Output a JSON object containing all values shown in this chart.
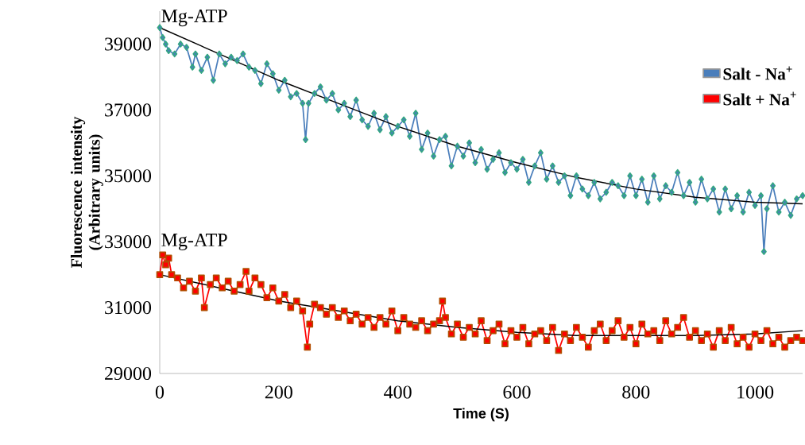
{
  "chart_data": {
    "type": "line",
    "xlabel": "Time (S)",
    "ylabel": "Fluorescence intensity (Arbitrary units)",
    "xlim": [
      0,
      1080
    ],
    "ylim": [
      29000,
      40000
    ],
    "xticks": [
      0,
      200,
      400,
      600,
      800,
      1000
    ],
    "yticks": [
      29000,
      31000,
      33000,
      35000,
      37000,
      39000
    ],
    "grid": false,
    "legend": "top right",
    "annotations": [
      {
        "text": "Mg-ATP",
        "x": 0,
        "y": 39500
      },
      {
        "text": "Mg-ATP",
        "x": 0,
        "y": 32700
      }
    ],
    "series": [
      {
        "name": "Salt - Na$^{+}$",
        "color": "#4a7ebb",
        "marker": "diamond",
        "x": [
          0,
          5,
          10,
          15,
          25,
          35,
          45,
          55,
          60,
          70,
          80,
          90,
          100,
          110,
          120,
          130,
          140,
          150,
          160,
          170,
          180,
          190,
          200,
          210,
          220,
          230,
          240,
          245,
          250,
          260,
          270,
          280,
          290,
          300,
          310,
          320,
          330,
          340,
          350,
          360,
          370,
          380,
          390,
          400,
          410,
          420,
          430,
          440,
          450,
          460,
          470,
          480,
          490,
          500,
          510,
          520,
          530,
          540,
          550,
          560,
          570,
          580,
          590,
          600,
          610,
          620,
          630,
          640,
          650,
          660,
          670,
          680,
          690,
          700,
          710,
          720,
          730,
          740,
          750,
          760,
          770,
          780,
          790,
          800,
          810,
          820,
          830,
          840,
          850,
          860,
          870,
          880,
          890,
          900,
          910,
          920,
          930,
          940,
          950,
          960,
          970,
          980,
          990,
          1000,
          1010,
          1015,
          1020,
          1030,
          1040,
          1050,
          1060,
          1070,
          1080
        ],
        "values": [
          39500,
          39200,
          39000,
          38800,
          38700,
          39000,
          38900,
          38300,
          38700,
          38200,
          38600,
          37900,
          38700,
          38400,
          38600,
          38500,
          38700,
          38300,
          38200,
          37800,
          38400,
          38100,
          37600,
          37900,
          37400,
          37500,
          37200,
          36100,
          37200,
          37500,
          37700,
          37300,
          37500,
          37000,
          37200,
          36800,
          37300,
          36700,
          36500,
          36900,
          36400,
          36800,
          36300,
          36500,
          36700,
          36200,
          36900,
          35800,
          36300,
          35600,
          36100,
          36200,
          35300,
          35900,
          35600,
          36000,
          35400,
          35800,
          35200,
          35500,
          35700,
          35100,
          35400,
          35200,
          35500,
          34800,
          35300,
          35700,
          34900,
          35300,
          34800,
          35000,
          34400,
          35000,
          34600,
          34400,
          34800,
          34300,
          34500,
          34800,
          34700,
          34400,
          35000,
          34400,
          34900,
          34200,
          35000,
          34300,
          34700,
          34500,
          35100,
          34400,
          34800,
          34200,
          34900,
          34300,
          34600,
          33900,
          34600,
          34000,
          34400,
          33900,
          34500,
          34100,
          34400,
          32700,
          34000,
          34700,
          33900,
          34200,
          33800,
          34300,
          34400
        ]
      },
      {
        "name": "Salt + Na$^{+}$",
        "color": "#ff0000",
        "marker": "square",
        "x": [
          0,
          5,
          10,
          15,
          20,
          30,
          40,
          50,
          60,
          70,
          75,
          85,
          95,
          105,
          115,
          125,
          135,
          145,
          150,
          160,
          170,
          180,
          190,
          200,
          210,
          220,
          230,
          240,
          248,
          252,
          260,
          270,
          280,
          290,
          300,
          310,
          320,
          330,
          340,
          350,
          360,
          370,
          380,
          390,
          400,
          410,
          420,
          430,
          440,
          450,
          460,
          470,
          475,
          480,
          490,
          500,
          510,
          520,
          530,
          540,
          550,
          560,
          570,
          580,
          590,
          600,
          610,
          620,
          630,
          640,
          650,
          660,
          670,
          680,
          690,
          700,
          710,
          720,
          730,
          740,
          750,
          760,
          770,
          780,
          790,
          800,
          810,
          820,
          830,
          840,
          850,
          860,
          870,
          880,
          890,
          900,
          910,
          920,
          930,
          940,
          950,
          960,
          970,
          980,
          990,
          1000,
          1010,
          1020,
          1030,
          1040,
          1050,
          1060,
          1070,
          1080
        ],
        "values": [
          32000,
          32600,
          32300,
          32500,
          32000,
          31900,
          31600,
          31800,
          31500,
          31900,
          31000,
          31700,
          31900,
          31600,
          31800,
          31500,
          31700,
          32100,
          31500,
          31900,
          31700,
          31300,
          31600,
          31200,
          31400,
          31000,
          31200,
          30900,
          29800,
          30500,
          31100,
          31000,
          30800,
          31000,
          30700,
          30900,
          30600,
          30800,
          30500,
          30700,
          30400,
          30700,
          30500,
          30900,
          30300,
          30700,
          30500,
          30400,
          30600,
          30300,
          30500,
          30600,
          31200,
          30700,
          30200,
          30500,
          30100,
          30400,
          30200,
          30600,
          30000,
          30300,
          30500,
          29900,
          30300,
          30100,
          30400,
          29900,
          30200,
          30300,
          30000,
          30400,
          29700,
          30200,
          30000,
          30400,
          30100,
          29800,
          30300,
          30500,
          30000,
          30300,
          30600,
          30100,
          30400,
          29900,
          30500,
          30200,
          30300,
          30000,
          30600,
          30200,
          30400,
          30700,
          30100,
          30300,
          30000,
          30200,
          29800,
          30300,
          30000,
          30400,
          29900,
          30100,
          29800,
          30200,
          30000,
          30300,
          29900,
          30100,
          29800,
          30000,
          30100,
          30000
        ]
      },
      {
        "color": "#000000",
        "marker": "none",
        "x": [
          0,
          100,
          200,
          300,
          400,
          500,
          600,
          700,
          800,
          900,
          1000,
          1080
        ],
        "values": [
          39500,
          38700,
          37900,
          37200,
          36500,
          35900,
          35400,
          34950,
          34600,
          34350,
          34200,
          34150
        ]
      },
      {
        "color": "#000000",
        "marker": "none",
        "x": [
          0,
          100,
          200,
          300,
          400,
          500,
          600,
          700,
          800,
          900,
          1000,
          1080
        ],
        "values": [
          32000,
          31600,
          31200,
          30900,
          30600,
          30400,
          30250,
          30150,
          30150,
          30150,
          30200,
          30300
        ]
      }
    ]
  }
}
